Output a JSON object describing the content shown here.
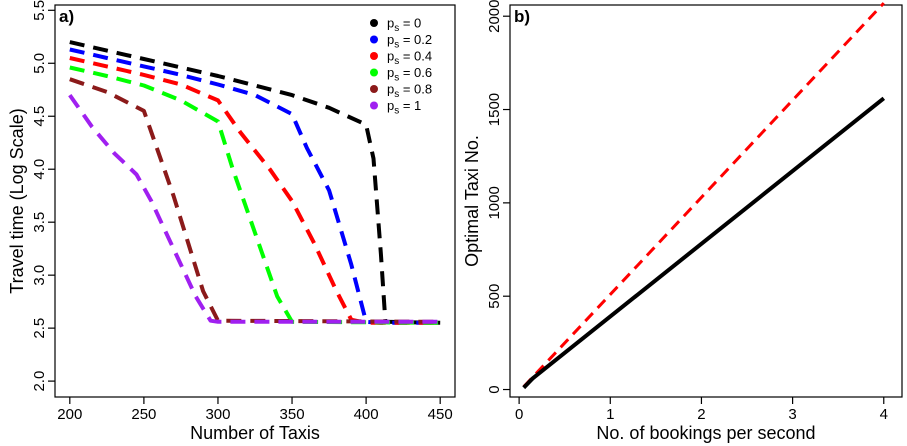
{
  "chart_data": [
    {
      "panel_label": "a)",
      "type": "line",
      "xlabel": "Number of Taxis",
      "ylabel": "Travel time (Log Scale)",
      "xlim": [
        190,
        460
      ],
      "ylim": [
        1.85,
        5.55
      ],
      "x_ticks": [
        200,
        250,
        300,
        350,
        400,
        450
      ],
      "x_tick_labels": [
        "200",
        "250",
        "300",
        "350",
        "400",
        "450"
      ],
      "y_ticks": [
        2.0,
        2.5,
        3.0,
        3.5,
        4.0,
        4.5,
        5.0,
        5.5
      ],
      "y_tick_labels": [
        "2.0",
        "2.5",
        "3.0",
        "3.5",
        "4.0",
        "4.5",
        "5.0",
        "5.5"
      ],
      "legend_position": "top-right",
      "line_style": "dashed",
      "series": [
        {
          "name": "p_s = 0",
          "label_base": "p",
          "label_sub": "s",
          "label_rest": " = 0",
          "color": "#000000",
          "x": [
            200,
            225,
            250,
            275,
            300,
            325,
            350,
            375,
            400,
            405,
            410,
            413,
            450
          ],
          "y": [
            5.2,
            5.12,
            5.04,
            4.96,
            4.88,
            4.79,
            4.7,
            4.58,
            4.42,
            4.1,
            3.2,
            2.56,
            2.55
          ]
        },
        {
          "name": "p_s = 0.2",
          "label_base": "p",
          "label_sub": "s",
          "label_rest": " = 0.2",
          "color": "#0000ff",
          "x": [
            200,
            225,
            250,
            275,
            300,
            325,
            350,
            360,
            375,
            390,
            400,
            410,
            450
          ],
          "y": [
            5.13,
            5.05,
            4.97,
            4.89,
            4.8,
            4.7,
            4.52,
            4.2,
            3.8,
            3.1,
            2.56,
            2.55,
            2.55
          ]
        },
        {
          "name": "p_s = 0.4",
          "label_base": "p",
          "label_sub": "s",
          "label_rest": " = 0.4",
          "color": "#ff0000",
          "x": [
            200,
            225,
            250,
            275,
            300,
            315,
            335,
            350,
            365,
            380,
            390,
            400,
            450
          ],
          "y": [
            5.05,
            4.97,
            4.89,
            4.8,
            4.65,
            4.35,
            4.0,
            3.7,
            3.3,
            2.85,
            2.58,
            2.55,
            2.55
          ]
        },
        {
          "name": "p_s = 0.6",
          "label_base": "p",
          "label_sub": "s",
          "label_rest": " = 0.6",
          "color": "#00ff00",
          "x": [
            200,
            225,
            250,
            275,
            300,
            310,
            320,
            330,
            340,
            350,
            450
          ],
          "y": [
            4.96,
            4.88,
            4.79,
            4.65,
            4.45,
            4.0,
            3.6,
            3.2,
            2.8,
            2.56,
            2.55
          ]
        },
        {
          "name": "p_s = 0.8",
          "label_base": "p",
          "label_sub": "s",
          "label_rest": " = 0.8",
          "color": "#8b1a1a",
          "x": [
            200,
            225,
            250,
            260,
            270,
            280,
            290,
            300,
            450
          ],
          "y": [
            4.85,
            4.73,
            4.55,
            4.15,
            3.75,
            3.3,
            2.85,
            2.57,
            2.56
          ]
        },
        {
          "name": "p_s = 1",
          "label_base": "p",
          "label_sub": "s",
          "label_rest": " = 1",
          "color": "#a020f0",
          "x": [
            200,
            215,
            230,
            245,
            255,
            265,
            275,
            285,
            295,
            300,
            450
          ],
          "y": [
            4.7,
            4.4,
            4.15,
            3.95,
            3.7,
            3.4,
            3.1,
            2.8,
            2.57,
            2.56,
            2.56
          ]
        }
      ]
    },
    {
      "panel_label": "b)",
      "type": "line",
      "xlabel": "No. of bookings per second",
      "ylabel": "Optimal Taxi No.",
      "xlim": [
        -0.1,
        4.2
      ],
      "ylim": [
        -40,
        2060
      ],
      "x_ticks": [
        0,
        1,
        2,
        3,
        4
      ],
      "x_tick_labels": [
        "0",
        "1",
        "2",
        "3",
        "4"
      ],
      "y_ticks": [
        0,
        500,
        1000,
        1500,
        2000
      ],
      "y_tick_labels": [
        "0",
        "500",
        "1000",
        "1500",
        "2000"
      ],
      "series": [
        {
          "style": "dashed",
          "color": "#ff0000",
          "x": [
            0.05,
            4.0
          ],
          "y": [
            15,
            2070
          ]
        },
        {
          "style": "solid",
          "color": "#000000",
          "x": [
            0.05,
            0.15,
            4.0
          ],
          "y": [
            10,
            60,
            1560
          ]
        }
      ]
    }
  ]
}
